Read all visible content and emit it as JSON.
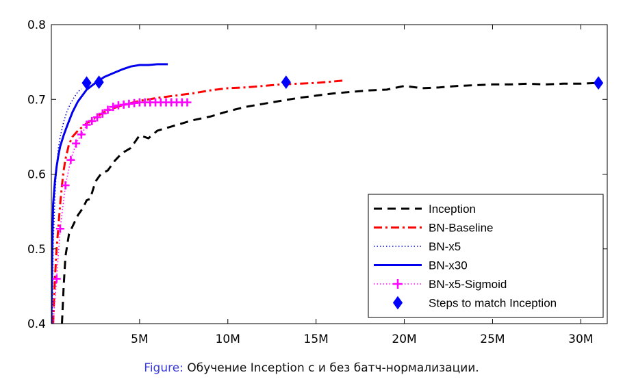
{
  "caption": {
    "prefix": "Figure:",
    "text": "Обучение Inception с и без батч-нормализации."
  },
  "chart_data": {
    "type": "line",
    "title": "",
    "xlabel": "",
    "ylabel": "",
    "xlim": [
      0,
      31500000
    ],
    "ylim": [
      0.4,
      0.8
    ],
    "x_ticks": [
      5000000,
      10000000,
      15000000,
      20000000,
      25000000,
      30000000
    ],
    "x_tick_labels": [
      "5M",
      "10M",
      "15M",
      "20M",
      "25M",
      "30M"
    ],
    "y_ticks": [
      0.4,
      0.5,
      0.6,
      0.7,
      0.8
    ],
    "y_tick_labels": [
      "0.4",
      "0.5",
      "0.6",
      "0.7",
      "0.8"
    ],
    "grid": false,
    "legend_position": "lower-right",
    "series": [
      {
        "name": "Inception",
        "color": "#000000",
        "style": "dashed",
        "x": [
          600000,
          700000,
          800000,
          1000000,
          1200000,
          1500000,
          1800000,
          2000000,
          2200000,
          2500000,
          2800000,
          3200000,
          3600000,
          4000000,
          4500000,
          5000000,
          5500000,
          6000000,
          7000000,
          8000000,
          9000000,
          10000000,
          11000000,
          12000000,
          13000000,
          14000000,
          15000000,
          16000000,
          17000000,
          18000000,
          19000000,
          20000000,
          21000000,
          22000000,
          23000000,
          24000000,
          25000000,
          26000000,
          27000000,
          28000000,
          29000000,
          30000000,
          31000000
        ],
        "y": [
          0.4,
          0.45,
          0.49,
          0.52,
          0.53,
          0.545,
          0.555,
          0.565,
          0.567,
          0.59,
          0.6,
          0.605,
          0.618,
          0.628,
          0.635,
          0.652,
          0.648,
          0.658,
          0.665,
          0.672,
          0.677,
          0.684,
          0.69,
          0.694,
          0.698,
          0.702,
          0.705,
          0.708,
          0.71,
          0.712,
          0.713,
          0.718,
          0.715,
          0.716,
          0.718,
          0.719,
          0.72,
          0.72,
          0.721,
          0.72,
          0.721,
          0.721,
          0.722
        ]
      },
      {
        "name": "BN-Baseline",
        "color": "#ff0000",
        "style": "dash-dot",
        "x": [
          100000,
          200000,
          300000,
          400000,
          500000,
          600000,
          700000,
          800000,
          1000000,
          1200000,
          1500000,
          2000000,
          2500000,
          3000000,
          3500000,
          4000000,
          5000000,
          6000000,
          7000000,
          8000000,
          9000000,
          10000000,
          11000000,
          12000000,
          13000000,
          14000000,
          15000000,
          16000000,
          16500000
        ],
        "y": [
          0.4,
          0.46,
          0.5,
          0.53,
          0.56,
          0.585,
          0.605,
          0.62,
          0.64,
          0.65,
          0.658,
          0.668,
          0.676,
          0.683,
          0.688,
          0.692,
          0.698,
          0.702,
          0.705,
          0.708,
          0.712,
          0.715,
          0.716,
          0.718,
          0.72,
          0.721,
          0.722,
          0.724,
          0.725
        ]
      },
      {
        "name": "BN-x5",
        "color": "#0000cc",
        "style": "dotted",
        "x": [
          50000,
          100000,
          200000,
          300000,
          400000,
          500000,
          700000,
          900000,
          1100000,
          1300000,
          1500000,
          1700000
        ],
        "y": [
          0.4,
          0.5,
          0.57,
          0.61,
          0.635,
          0.65,
          0.67,
          0.685,
          0.695,
          0.703,
          0.71,
          0.714
        ]
      },
      {
        "name": "BN-x30",
        "color": "#0000ee",
        "style": "solid",
        "x": [
          0,
          50000,
          100000,
          200000,
          300000,
          400000,
          500000,
          700000,
          900000,
          1200000,
          1500000,
          2000000,
          2500000,
          3000000,
          3500000,
          4000000,
          4500000,
          5000000,
          5500000,
          6000000,
          6600000
        ],
        "y": [
          0.4,
          0.5,
          0.56,
          0.59,
          0.61,
          0.625,
          0.637,
          0.652,
          0.665,
          0.683,
          0.697,
          0.713,
          0.722,
          0.73,
          0.735,
          0.74,
          0.744,
          0.746,
          0.746,
          0.747,
          0.747
        ]
      },
      {
        "name": "BN-x5-Sigmoid",
        "color": "#ff00ff",
        "style": "dotted-plus",
        "x": [
          100000,
          300000,
          500000,
          800000,
          1100000,
          1400000,
          1700000,
          2000000,
          2300000,
          2600000,
          2900000,
          3200000,
          3500000,
          3800000,
          4100000,
          4400000,
          4700000,
          5000000,
          5300000,
          5600000,
          5900000,
          6200000,
          6500000,
          6800000,
          7100000,
          7400000,
          7700000
        ],
        "y": [
          0.4,
          0.46,
          0.527,
          0.585,
          0.619,
          0.641,
          0.653,
          0.666,
          0.671,
          0.676,
          0.681,
          0.686,
          0.69,
          0.692,
          0.693,
          0.694,
          0.695,
          0.696,
          0.696,
          0.696,
          0.696,
          0.696,
          0.696,
          0.696,
          0.696,
          0.696,
          0.696
        ]
      },
      {
        "name": "Steps to match Inception",
        "color": "#0000ff",
        "style": "diamond",
        "x": [
          2000000,
          2700000,
          13300000,
          31000000
        ],
        "y": [
          0.722,
          0.723,
          0.723,
          0.722
        ]
      }
    ]
  }
}
